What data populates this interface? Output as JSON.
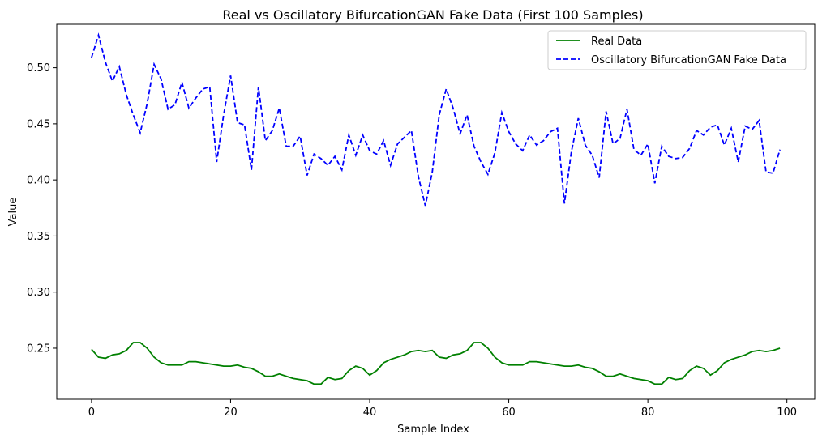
{
  "chart_data": {
    "type": "line",
    "title": "Real vs Oscillatory BifurcationGAN Fake Data (First 100 Samples)",
    "xlabel": "Sample Index",
    "ylabel": "Value",
    "xlim": [
      -5,
      104
    ],
    "ylim": [
      0.2045,
      0.5387
    ],
    "xticks": [
      0,
      20,
      40,
      60,
      80,
      100
    ],
    "yticks": [
      0.25,
      0.3,
      0.35,
      0.4,
      0.45,
      0.5
    ],
    "ytick_labels": [
      "0.25",
      "0.30",
      "0.35",
      "0.40",
      "0.45",
      "0.50"
    ],
    "grid": false,
    "legend_position": "top-right",
    "series": [
      {
        "name": "Real Data",
        "color": "#008000",
        "style": "solid",
        "values": [
          0.249,
          0.242,
          0.241,
          0.244,
          0.245,
          0.248,
          0.255,
          0.255,
          0.25,
          0.242,
          0.237,
          0.235,
          0.235,
          0.235,
          0.238,
          0.238,
          0.237,
          0.236,
          0.235,
          0.234,
          0.234,
          0.235,
          0.233,
          0.232,
          0.229,
          0.225,
          0.225,
          0.227,
          0.225,
          0.223,
          0.222,
          0.221,
          0.218,
          0.218,
          0.224,
          0.222,
          0.223,
          0.23,
          0.234,
          0.232,
          0.226,
          0.23,
          0.237,
          0.24,
          0.242,
          0.244,
          0.247,
          0.248,
          0.247,
          0.248,
          0.242,
          0.241,
          0.244,
          0.245,
          0.248,
          0.255,
          0.255,
          0.25,
          0.242,
          0.237,
          0.235,
          0.235,
          0.235,
          0.238,
          0.238,
          0.237,
          0.236,
          0.235,
          0.234,
          0.234,
          0.235,
          0.233,
          0.232,
          0.229,
          0.225,
          0.225,
          0.227,
          0.225,
          0.223,
          0.222,
          0.221,
          0.218,
          0.218,
          0.224,
          0.222,
          0.223,
          0.23,
          0.234,
          0.232,
          0.226,
          0.23,
          0.237,
          0.24,
          0.242,
          0.244,
          0.247,
          0.248,
          0.247,
          0.248,
          0.25
        ]
      },
      {
        "name": "Oscillatory BifurcationGAN Fake Data",
        "color": "#0000ff",
        "style": "dashed",
        "values": [
          0.509,
          0.529,
          0.505,
          0.488,
          0.501,
          0.476,
          0.458,
          0.442,
          0.468,
          0.503,
          0.49,
          0.463,
          0.467,
          0.487,
          0.464,
          0.473,
          0.481,
          0.483,
          0.416,
          0.458,
          0.493,
          0.451,
          0.449,
          0.409,
          0.483,
          0.435,
          0.444,
          0.464,
          0.43,
          0.43,
          0.439,
          0.404,
          0.423,
          0.419,
          0.413,
          0.421,
          0.409,
          0.44,
          0.422,
          0.44,
          0.426,
          0.423,
          0.435,
          0.413,
          0.432,
          0.438,
          0.444,
          0.403,
          0.377,
          0.407,
          0.458,
          0.481,
          0.464,
          0.441,
          0.458,
          0.43,
          0.416,
          0.405,
          0.424,
          0.46,
          0.443,
          0.432,
          0.426,
          0.44,
          0.431,
          0.435,
          0.443,
          0.446,
          0.379,
          0.425,
          0.455,
          0.431,
          0.422,
          0.402,
          0.461,
          0.432,
          0.437,
          0.463,
          0.427,
          0.422,
          0.432,
          0.397,
          0.43,
          0.421,
          0.419,
          0.42,
          0.428,
          0.444,
          0.44,
          0.447,
          0.449,
          0.431,
          0.446,
          0.416,
          0.448,
          0.445,
          0.453,
          0.407,
          0.406,
          0.427
        ]
      }
    ]
  }
}
